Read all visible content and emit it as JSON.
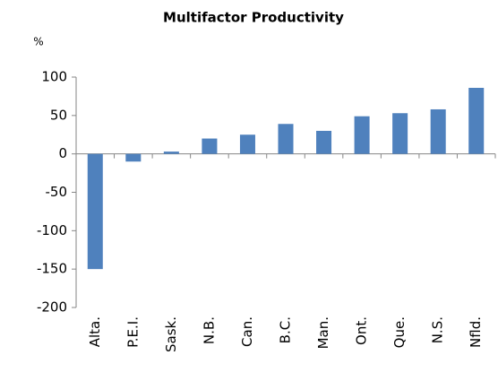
{
  "chart_data": {
    "type": "bar",
    "title": "Multifactor Productivity",
    "y_label": "%",
    "categories": [
      "Alta.",
      "P.E.I.",
      "Sask.",
      "N.B.",
      "Can.",
      "B.C.",
      "Man.",
      "Ont.",
      "Que.",
      "N.S.",
      "Nfld."
    ],
    "values": [
      -150,
      -10,
      3,
      20,
      25,
      39,
      30,
      49,
      53,
      58,
      86
    ],
    "color": "#4f81bd",
    "ylim": [
      -200,
      100
    ],
    "yticks": [
      -200,
      -150,
      -100,
      -50,
      0,
      50,
      100
    ],
    "grid": false
  }
}
